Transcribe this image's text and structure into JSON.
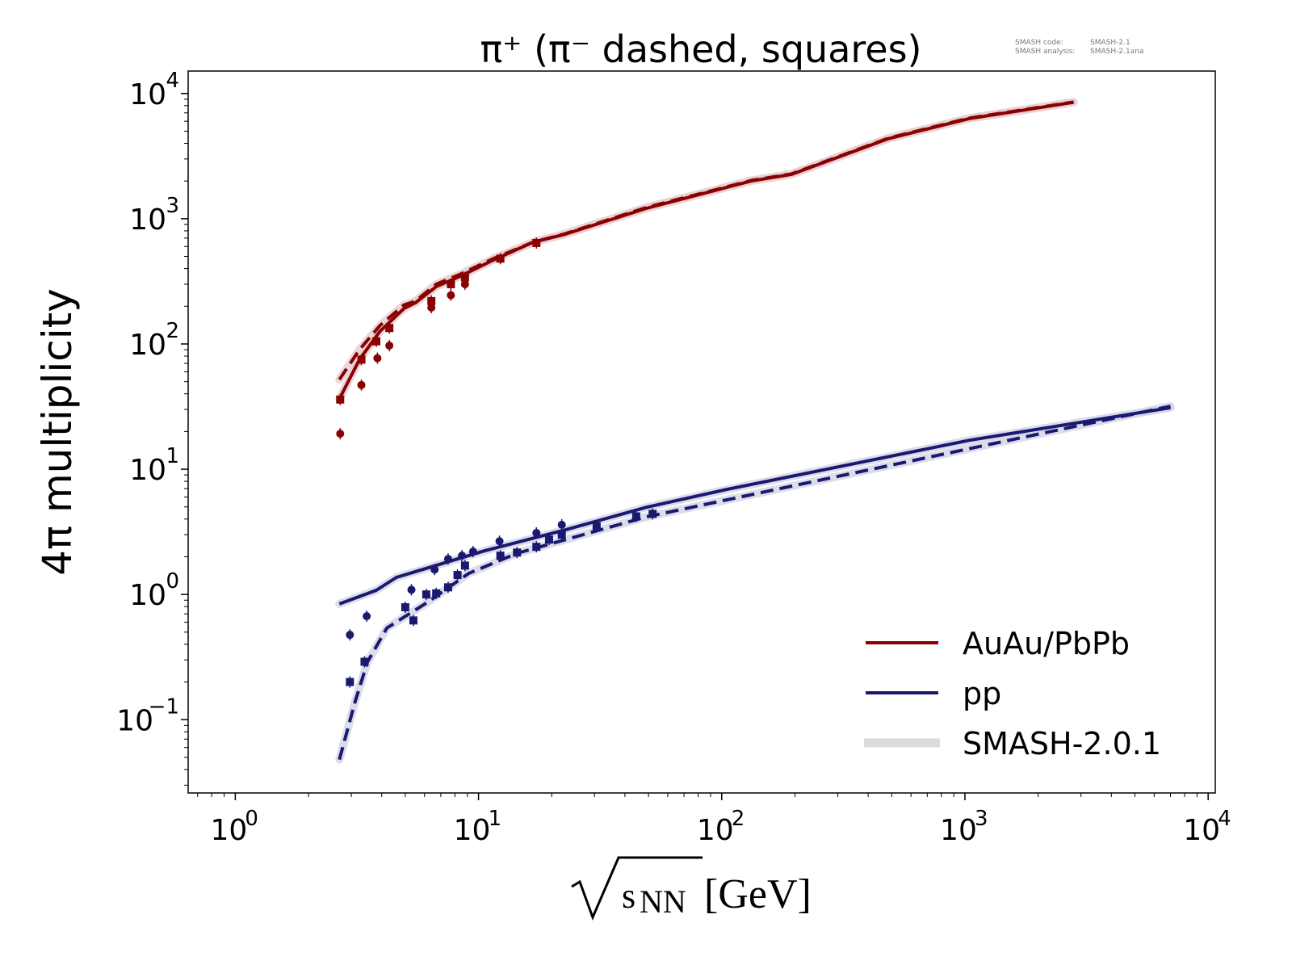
{
  "chart_data": {
    "type": "line",
    "title": "π⁺ (π⁻ dashed, squares)",
    "xlabel": "√sNN [GeV]",
    "xlabel_parts": {
      "root": "s",
      "sub": "NN",
      "unit": "[GeV]"
    },
    "ylabel": "4π multiplicity",
    "xscale": "log",
    "yscale": "log",
    "xlim": [
      0.64,
      10700
    ],
    "ylim": [
      0.026,
      15100
    ],
    "xticks": [
      {
        "base": "10",
        "exp": "0",
        "v": 1
      },
      {
        "base": "10",
        "exp": "1",
        "v": 10
      },
      {
        "base": "10",
        "exp": "2",
        "v": 100
      },
      {
        "base": "10",
        "exp": "3",
        "v": 1000
      },
      {
        "base": "10",
        "exp": "4",
        "v": 10000
      }
    ],
    "yticks": [
      {
        "base": "10",
        "exp": "−1",
        "v": 0.1
      },
      {
        "base": "10",
        "exp": "0",
        "v": 1
      },
      {
        "base": "10",
        "exp": "1",
        "v": 10
      },
      {
        "base": "10",
        "exp": "2",
        "v": 100
      },
      {
        "base": "10",
        "exp": "3",
        "v": 1000
      },
      {
        "base": "10",
        "exp": "4",
        "v": 10000
      }
    ],
    "grid": false,
    "legend_position": "bottom-right",
    "legend": [
      {
        "label": "AuAu/PbPb",
        "color": "#8b0000",
        "style": "line"
      },
      {
        "label": "pp",
        "color": "#191970",
        "style": "line"
      },
      {
        "label": "SMASH-2.0.1",
        "color": "#dcdcdc",
        "style": "band"
      }
    ],
    "annotation": {
      "code_label": "SMASH code:",
      "code_value": "SMASH-2.1",
      "analysis_label": "SMASH analysis:",
      "analysis_value": "SMASH-2.1ana"
    },
    "series": [
      {
        "name": "AuAu/PbPb π+ SMASH",
        "color": "#8b0000",
        "band": "#e8d0d2",
        "dash": false,
        "x": [
          2.68,
          3.24,
          3.93,
          4.94,
          5.5,
          6.7,
          8.4,
          11.5,
          16.8,
          22.8,
          49,
          105,
          132,
          194,
          484,
          1040,
          2800
        ],
        "y": [
          36.4,
          75,
          126,
          192,
          213,
          287,
          347,
          468,
          650,
          754,
          1210,
          1780,
          2000,
          2260,
          4350,
          6300,
          8500
        ]
      },
      {
        "name": "AuAu/PbPb π- SMASH",
        "color": "#8b0000",
        "band": "#e8d0d2",
        "dash": true,
        "x": [
          2.68,
          3.24,
          3.93,
          4.94,
          5.5,
          6.7,
          8.4,
          11.5,
          16.8,
          22.8,
          49,
          105,
          132,
          194,
          484,
          1040,
          2800
        ],
        "y": [
          52,
          90,
          140,
          205,
          220,
          300,
          360,
          480,
          650,
          760,
          1230,
          1800,
          2020,
          2280,
          4400,
          6350,
          8550
        ]
      },
      {
        "name": "pp π+ SMASH",
        "color": "#191970",
        "band": "#d6d6e8",
        "dash": false,
        "x": [
          2.68,
          3.8,
          4.6,
          10.6,
          22.8,
          49,
          105,
          1040,
          7000
        ],
        "y": [
          0.84,
          1.08,
          1.37,
          2.23,
          3.28,
          4.97,
          6.9,
          17,
          31
        ]
      },
      {
        "name": "pp π- SMASH",
        "color": "#191970",
        "band": "#d6d6e8",
        "dash": true,
        "x": [
          2.68,
          3.1,
          3.5,
          4.2,
          6.2,
          9.1,
          14.4,
          22.8,
          49,
          226,
          7000
        ],
        "y": [
          0.048,
          0.137,
          0.29,
          0.54,
          0.87,
          1.47,
          2.13,
          2.74,
          4.16,
          7.8,
          31.8
        ]
      }
    ],
    "data_points": [
      {
        "name": "AuAu π+ data",
        "marker": "circle",
        "color": "#8b0000",
        "x": [
          2.7,
          3.3,
          3.84,
          4.3,
          6.4,
          7.7,
          8.8
        ],
        "y": [
          19.2,
          47,
          77,
          97,
          195,
          245,
          300
        ]
      },
      {
        "name": "AuAu π- data",
        "marker": "square",
        "color": "#8b0000",
        "x": [
          2.7,
          3.3,
          3.8,
          4.3,
          6.4,
          7.7,
          8.8,
          12.3,
          17.3
        ],
        "y": [
          36,
          75,
          105,
          134,
          220,
          300,
          340,
          480,
          640
        ]
      },
      {
        "name": "pp π+ data",
        "marker": "circle",
        "color": "#191970",
        "x": [
          2.96,
          3.47,
          5.3,
          6.6,
          7.5,
          8.55,
          9.5,
          12.2,
          17.3,
          22
        ],
        "y": [
          0.476,
          0.67,
          1.09,
          1.58,
          1.92,
          2.04,
          2.2,
          2.66,
          3.1,
          3.6
        ]
      },
      {
        "name": "pp π- data",
        "marker": "square",
        "color": "#191970",
        "x": [
          2.96,
          3.4,
          5.0,
          5.4,
          6.1,
          6.7,
          7.5,
          8.2,
          8.8,
          12.3,
          14.4,
          17.3,
          19.5,
          22,
          30.6,
          44.5,
          52
        ],
        "y": [
          0.2,
          0.29,
          0.79,
          0.62,
          1.0,
          1.02,
          1.14,
          1.43,
          1.7,
          2.04,
          2.16,
          2.4,
          2.74,
          3.0,
          3.5,
          4.2,
          4.4
        ]
      }
    ]
  }
}
